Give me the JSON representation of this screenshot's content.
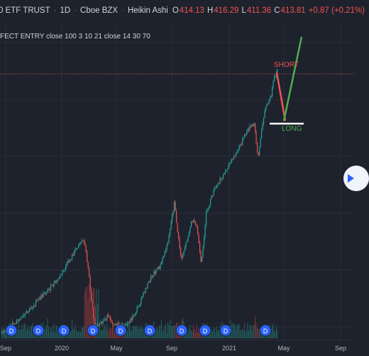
{
  "header": {
    "symbol": "0 ETF TRUST",
    "interval": "1D",
    "exchange": "Cboe BZX",
    "chart_style": "Heikin Ashi",
    "ohlc": {
      "o_label": "O",
      "o_value": "414.13",
      "h_label": "H",
      "h_value": "416.29",
      "l_label": "L",
      "l_value": "411.36",
      "c_label": "C",
      "c_value": "413.81",
      "change": "+0.87 (+0.21%)"
    }
  },
  "indicator_label": "FECT ENTRY close 100 3 10 21 close 14 30 70",
  "annotations": {
    "short": "SHORT",
    "long": "LONG"
  },
  "x_axis": {
    "labels": [
      "Sep",
      "2020",
      "May",
      "Sep",
      "2021",
      "May",
      "Sep"
    ]
  },
  "event_marker_label": "D",
  "colors": {
    "background": "#1e222d",
    "up_candle": "#26a69a",
    "down_candle": "#ef5350",
    "short_line": "#ef5350",
    "long_line": "#4caf50",
    "marker": "#2962ff"
  },
  "chart_data": {
    "type": "candlestick",
    "style": "Heikin Ashi",
    "x": [
      "2019-09",
      "2019-10",
      "2019-11",
      "2019-12",
      "2020-01",
      "2020-02",
      "2020-03",
      "2020-04",
      "2020-05",
      "2020-06",
      "2020-07",
      "2020-08",
      "2020-09",
      "2020-10",
      "2020-11",
      "2020-12",
      "2021-01",
      "2021-02",
      "2021-03",
      "2021-04"
    ],
    "close": [
      298,
      301,
      312,
      321,
      323,
      332,
      258,
      287,
      303,
      310,
      326,
      347,
      334,
      331,
      364,
      373,
      378,
      387,
      396,
      414
    ],
    "last_ohlc": {
      "open": 414.13,
      "high": 416.29,
      "low": 411.36,
      "close": 413.81
    },
    "last_change": 0.87,
    "last_change_pct": 0.21
  }
}
